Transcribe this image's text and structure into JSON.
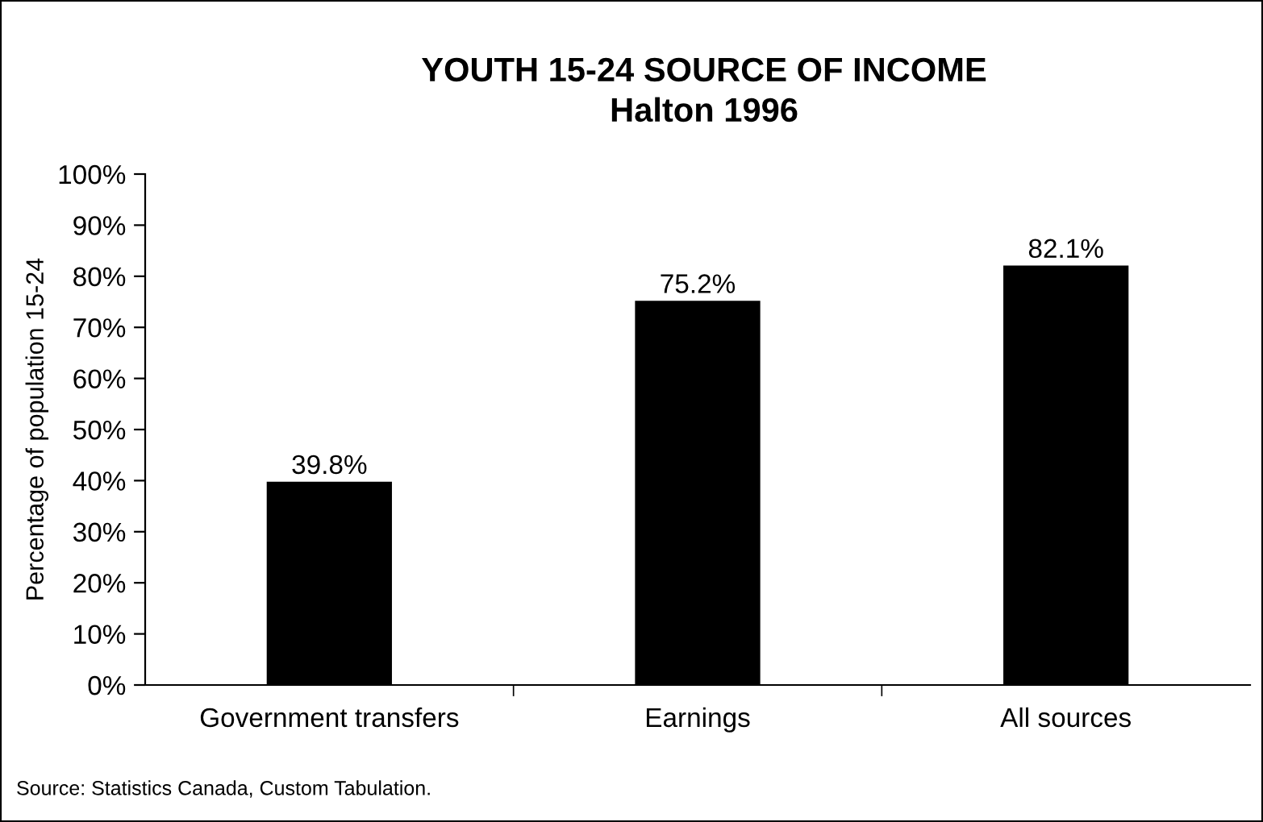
{
  "chart_data": {
    "type": "bar",
    "title": "YOUTH 15-24 SOURCE OF INCOME",
    "subtitle": "Halton 1996",
    "ylabel": "Percentage of population 15-24",
    "categories": [
      "Government transfers",
      "Earnings",
      "All sources"
    ],
    "values": [
      39.8,
      75.2,
      82.1
    ],
    "color": "#000000",
    "value_labels": [
      "39.8%",
      "75.2%",
      "82.1%"
    ],
    "ylim": [
      0,
      100
    ],
    "yticks": [
      {
        "value": 0,
        "label": "0%"
      },
      {
        "value": 10,
        "label": "10%"
      },
      {
        "value": 20,
        "label": "20%"
      },
      {
        "value": 30,
        "label": "30%"
      },
      {
        "value": 40,
        "label": "40%"
      },
      {
        "value": 50,
        "label": "50%"
      },
      {
        "value": 60,
        "label": "60%"
      },
      {
        "value": 70,
        "label": "70%"
      },
      {
        "value": 80,
        "label": "80%"
      },
      {
        "value": 90,
        "label": "90%"
      },
      {
        "value": 100,
        "label": "100%"
      }
    ],
    "grid": false,
    "annotations": [
      "Source: Statistics Canada, Custom Tabulation."
    ]
  }
}
